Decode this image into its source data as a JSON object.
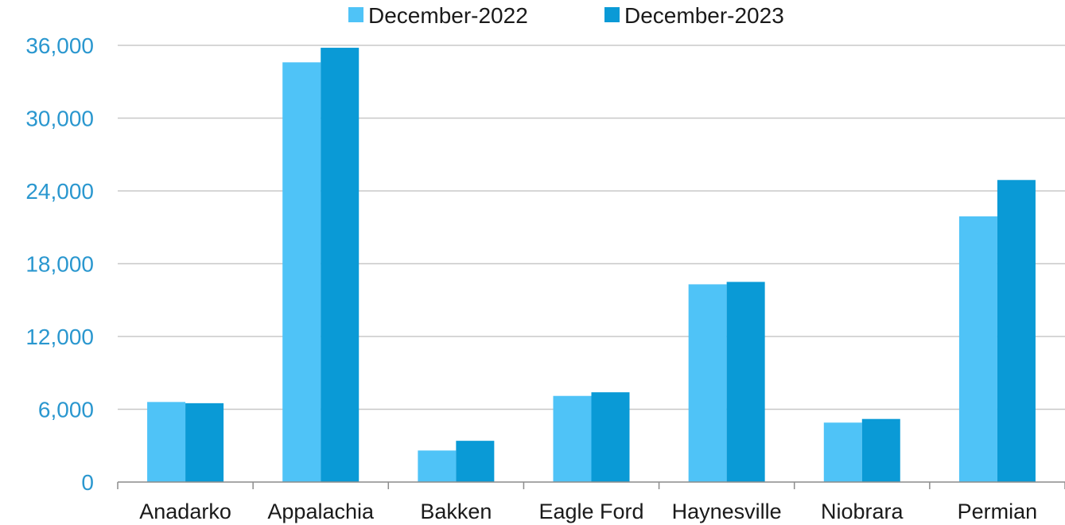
{
  "chart_data": {
    "type": "bar",
    "title": "",
    "xlabel": "",
    "ylabel": "",
    "categories": [
      "Anadarko",
      "Appalachia",
      "Bakken",
      "Eagle Ford",
      "Haynesville",
      "Niobrara",
      "Permian"
    ],
    "series": [
      {
        "name": "December-2022",
        "color": "#4fc3f7",
        "values": [
          6600,
          34600,
          2600,
          7100,
          16300,
          4900,
          21900
        ]
      },
      {
        "name": "December-2023",
        "color": "#0a9ad6",
        "values": [
          6500,
          35800,
          3400,
          7400,
          16500,
          5200,
          24900
        ]
      }
    ],
    "ylim": [
      0,
      36000
    ],
    "yticks": [
      0,
      6000,
      12000,
      18000,
      24000,
      30000,
      36000
    ],
    "ytick_labels": [
      "0",
      "6,000",
      "12,000",
      "18,000",
      "24,000",
      "30,000",
      "36,000"
    ],
    "grid": "horizontal",
    "legend_position": "top-center"
  }
}
